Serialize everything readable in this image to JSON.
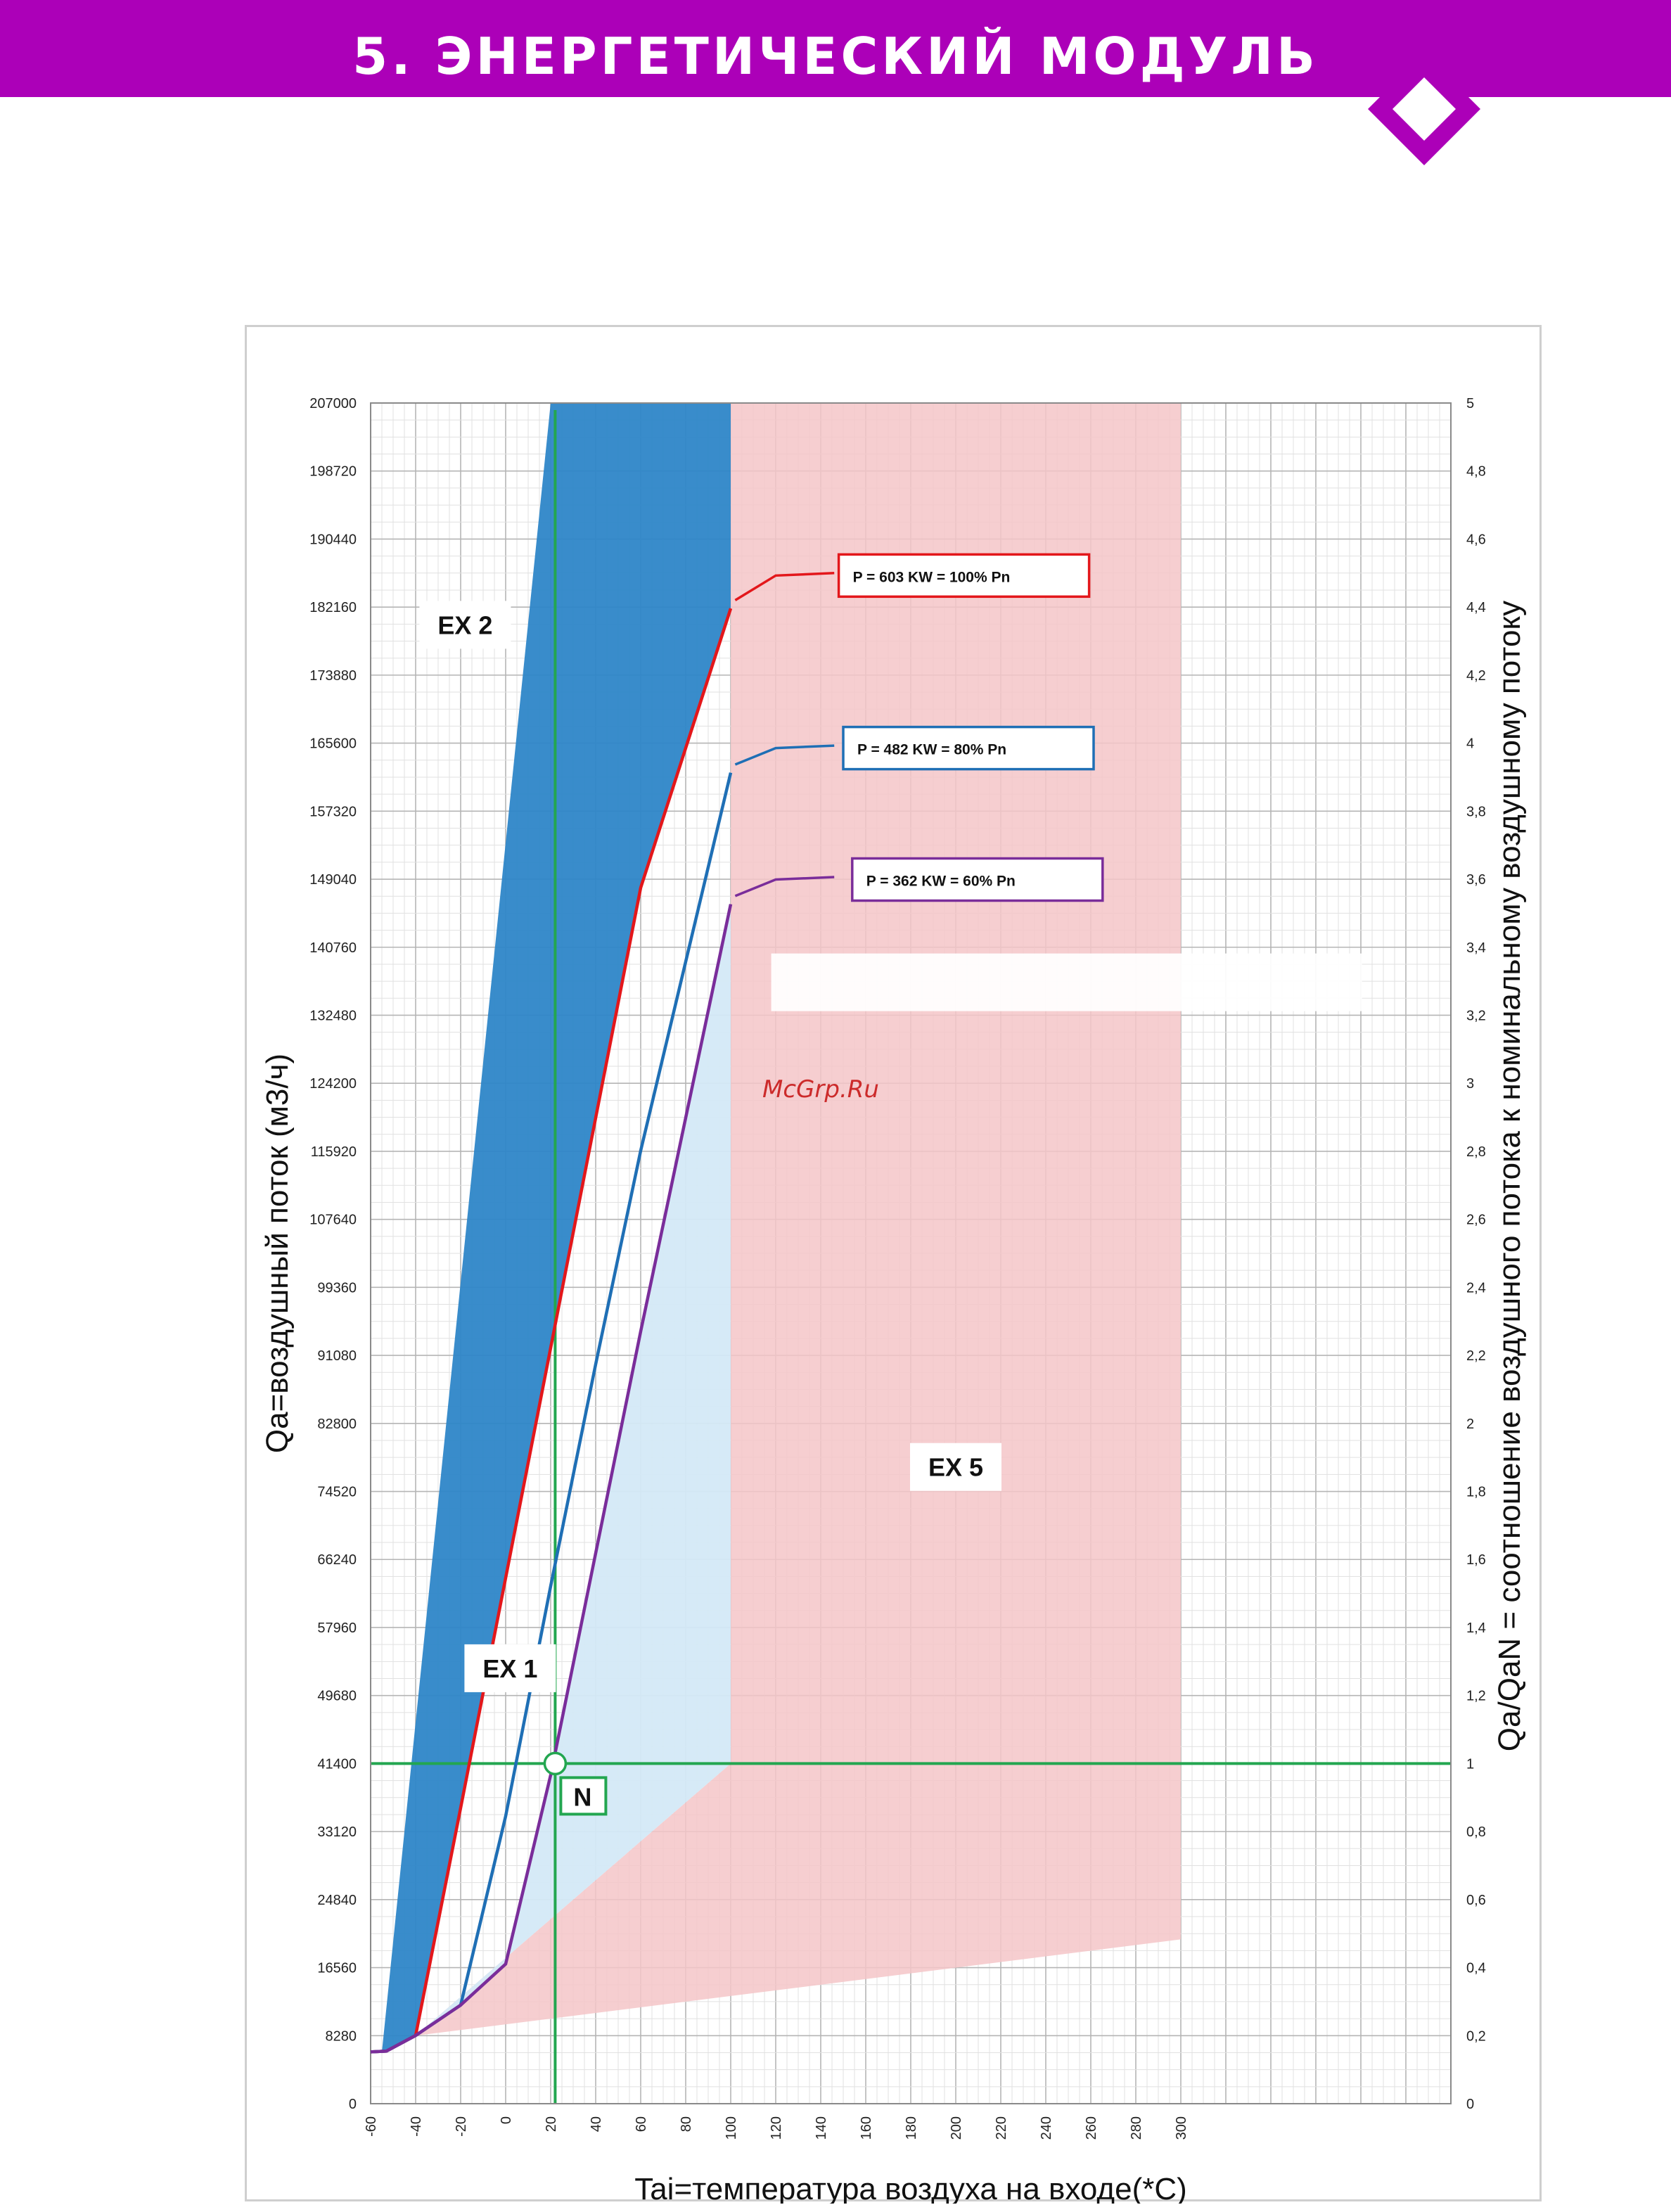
{
  "header": {
    "title": "5. ЭНЕРГЕТИЧЕСКИЙ МОДУЛЬ",
    "bar_color": "#ac00b8",
    "icon": "diamond-icon"
  },
  "watermark": "McGrp.Ru",
  "chart_data": {
    "type": "line",
    "xlabel": "Tai=температура воздуха на входе(*C)",
    "ylabel": "Qa=воздушный поток (м3/ч)",
    "y2label": "Qa/QaN = соотношение воздушного потока к номинальному воздушному потоку",
    "xlim": [
      -60,
      420
    ],
    "ylim": [
      0,
      207000
    ],
    "y2lim": [
      0,
      5
    ],
    "x_ticks": [
      "-60",
      "-40",
      "-20",
      "0",
      "20",
      "40",
      "60",
      "80",
      "100",
      "120",
      "140",
      "160",
      "180",
      "200",
      "220",
      "240",
      "260",
      "280",
      "300"
    ],
    "y_ticks": [
      "0",
      "8280",
      "16560",
      "24840",
      "33120",
      "41400",
      "49680",
      "57960",
      "66240",
      "74520",
      "82800",
      "91080",
      "99360",
      "107640",
      "115920",
      "124200",
      "132480",
      "140760",
      "149040",
      "157320",
      "165600",
      "173880",
      "182160",
      "190440",
      "198720",
      "207000"
    ],
    "y2_ticks": [
      "0",
      "0,2",
      "0,4",
      "0,6",
      "0,8",
      "1",
      "1,2",
      "1,4",
      "1,6",
      "1,8",
      "2",
      "2,2",
      "2,4",
      "2,6",
      "2,8",
      "3",
      "3,2",
      "3,4",
      "3,6",
      "3,8",
      "4",
      "4,2",
      "4,4",
      "4,6",
      "4,8",
      "5"
    ],
    "grid": true,
    "series": [
      {
        "name": "P = 603 KW =  100% Pn",
        "color": "#e3171b",
        "x": [
          -60,
          -53,
          -40,
          -20,
          0,
          20,
          40,
          60,
          80,
          100
        ],
        "y": [
          6300,
          6400,
          8300,
          36000,
          64000,
          92000,
          120000,
          148000,
          165000,
          182000
        ]
      },
      {
        "name": "P = 482 KW =  80% Pn",
        "color": "#1f6fb5",
        "x": [
          -60,
          -53,
          -40,
          -20,
          0,
          20,
          40,
          60,
          80,
          100
        ],
        "y": [
          6300,
          6400,
          8300,
          12000,
          35000,
          63000,
          90000,
          116000,
          139000,
          162000
        ]
      },
      {
        "name": "P = 362 KW =  60% Pn",
        "color": "#7a2d9a",
        "x": [
          -60,
          -53,
          -40,
          -20,
          0,
          20,
          40,
          60,
          80,
          100
        ],
        "y": [
          6300,
          6400,
          8300,
          12000,
          17000,
          40000,
          67000,
          94000,
          120000,
          146000
        ]
      }
    ],
    "zones": [
      {
        "label": "EX 2",
        "color": "#2e86c8"
      },
      {
        "label": "EX 1",
        "color": "#d4e9f7"
      },
      {
        "label": "EX 5",
        "color": "#f4c6c8"
      }
    ],
    "nominal_point": {
      "label": "N",
      "x": 22,
      "y": 41400,
      "ratio": "1"
    }
  }
}
